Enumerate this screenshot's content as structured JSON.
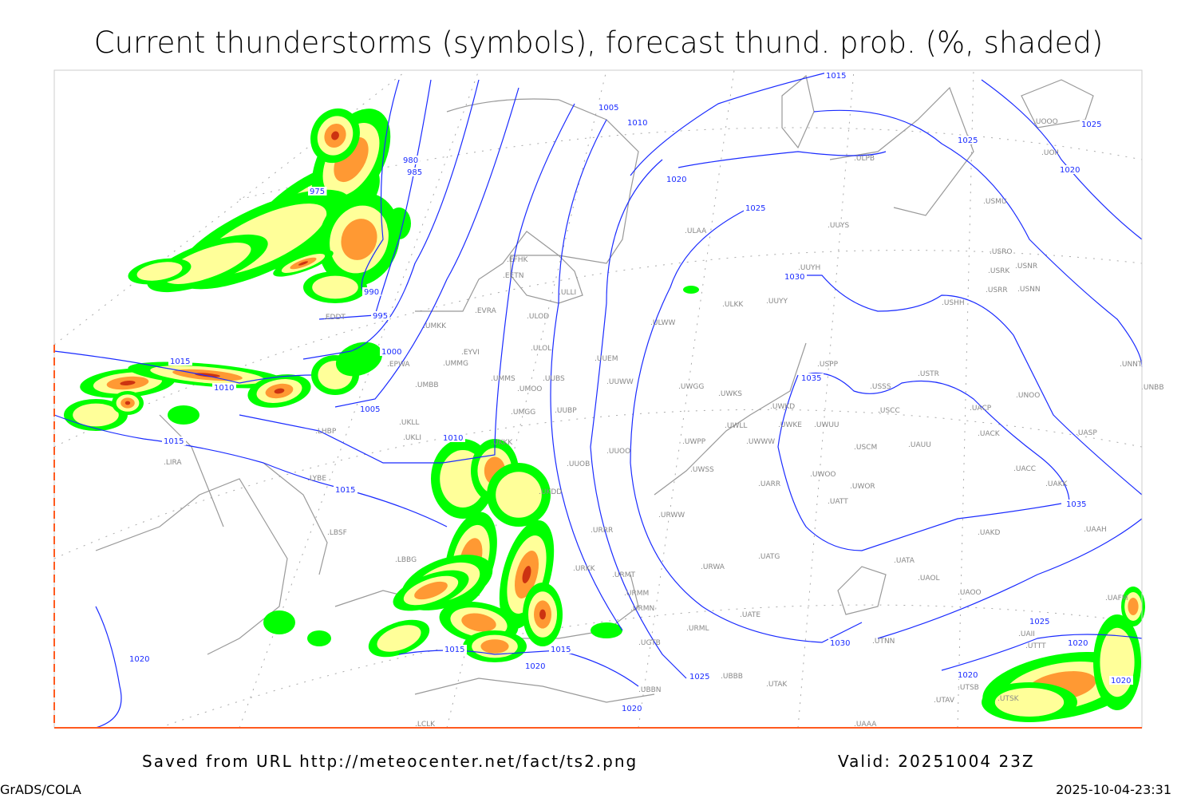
{
  "title": "Current thunderstorms (symbols), forecast thund. prob. (%, shaded)",
  "footer": {
    "saved_from": "Saved from URL http://meteocenter.net/fact/ts2.png",
    "valid": "Valid: 20251004 23Z",
    "software": "GrADS/COLA",
    "timestamp": "2025-10-04-23:31"
  },
  "colors": {
    "isobar": "#1a2bff",
    "coastline": "#999999",
    "prob_low": "#00ff00",
    "prob_mid": "#ffff99",
    "prob_high": "#ff9933",
    "prob_max": "#cc3311"
  },
  "isobar_labels": [
    "1015",
    "1005",
    "1010",
    "1020",
    "1025",
    "1030",
    "1035",
    "1035",
    "1030",
    "1025",
    "1025",
    "1020",
    "980",
    "985",
    "975",
    "990",
    "995",
    "1000",
    "1005",
    "1010",
    "1015",
    "1010",
    "1015",
    "1015",
    "1020",
    "1015",
    "1015",
    "1020",
    "1025",
    "1020",
    "1025",
    "1020",
    "1020",
    "1020"
  ],
  "stations": [
    "EFHK",
    "EETN",
    "EVRA",
    "ULLI",
    "ULOD",
    "UMKK",
    "EYVI",
    "ULOL",
    "EPWA",
    "UMMG",
    "UMMS",
    "UMOO",
    "UUBS",
    "UMBB",
    "UUEM",
    "UUWW",
    "UMGG",
    "UUBP",
    "UKLL",
    "UKLI",
    "LHBP",
    "UKKK",
    "UUOO",
    "UUOB",
    "LIRA",
    "LYBE",
    "LBSF",
    "LBBG",
    "ULAA",
    "UUYS",
    "UUYH",
    "ULKK",
    "UUYY",
    "ULWW",
    "UWGG",
    "UWKS",
    "UWKD",
    "UWLL",
    "UWKE",
    "UWUU",
    "UWPP",
    "UWWW",
    "UWSS",
    "UARR",
    "UWOO",
    "UWOR",
    "UATT",
    "USPP",
    "USSS",
    "USTR",
    "USCC",
    "USCM",
    "UAUU",
    "UACP",
    "UACK",
    "UACC",
    "UAKK",
    "UNOO",
    "USHH",
    "USRR",
    "USNN",
    "USRK",
    "USNR",
    "USRO",
    "USMU",
    "UOOO",
    "UOII",
    "UNNT",
    "UNBB",
    "UASP",
    "UAKD",
    "UAAH",
    "UATA",
    "UAOL",
    "UAOO",
    "UATG",
    "URWA",
    "UATE",
    "URML",
    "UTNN",
    "UTAK",
    "UBBB",
    "UTSB",
    "UTAV",
    "UTSK",
    "UAFM",
    "UAII",
    "UTTT",
    "URWW",
    "URMT",
    "URMM",
    "URMN",
    "URRR",
    "UKDD",
    "URKK",
    "UGTB",
    "UBBN",
    "LCLK",
    "UAAA",
    "EDDT",
    "ULPB"
  ]
}
